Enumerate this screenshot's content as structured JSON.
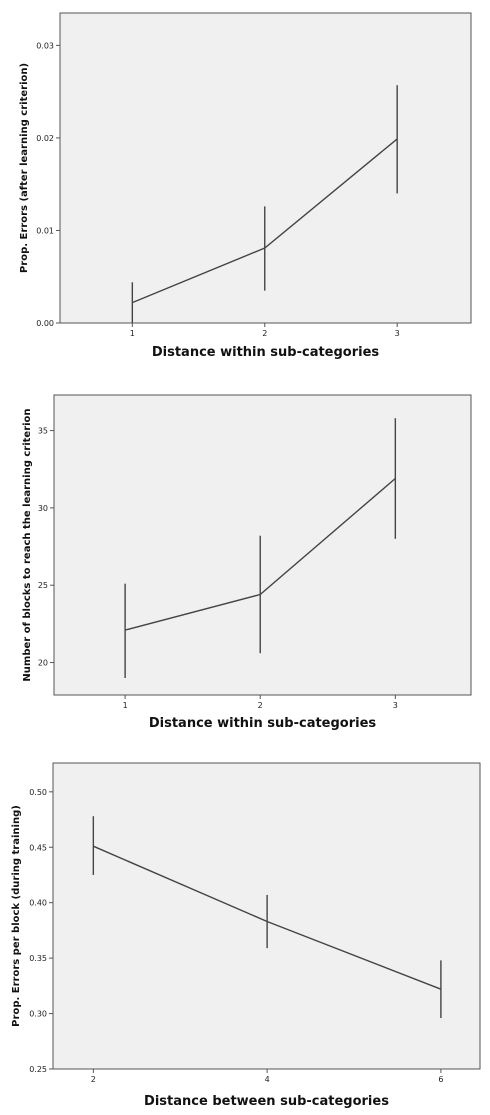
{
  "chart_data": [
    {
      "type": "line",
      "xlabel": "Distance within sub-categories",
      "ylabel": "Prop. Errors (after learning criterion)",
      "x": [
        1,
        2,
        3
      ],
      "x_ticks": [
        "1",
        "2",
        "3"
      ],
      "y_ticks": [
        "0.00",
        "0.01",
        "0.02",
        "0.03"
      ],
      "ylim": [
        0.0,
        0.0335
      ],
      "values": [
        0.0022,
        0.0081,
        0.0199
      ],
      "error_low": [
        0.0,
        0.0035,
        0.014
      ],
      "error_high": [
        0.0044,
        0.0126,
        0.0257
      ],
      "grid": false
    },
    {
      "type": "line",
      "xlabel": "Distance within sub-categories",
      "ylabel": "Number of blocks to reach the learning criterion",
      "x": [
        1,
        2,
        3
      ],
      "x_ticks": [
        "1",
        "2",
        "3"
      ],
      "y_ticks": [
        "20",
        "25",
        "30",
        "35"
      ],
      "ylim": [
        17.9,
        37.3
      ],
      "values": [
        22.1,
        24.4,
        31.9
      ],
      "error_low": [
        19.0,
        20.6,
        28.0
      ],
      "error_high": [
        25.1,
        28.2,
        35.8
      ],
      "grid": false
    },
    {
      "type": "line",
      "xlabel": "Distance between sub-categories",
      "ylabel": "Prop. Errors per block (during training)",
      "x": [
        2,
        4,
        6
      ],
      "x_ticks": [
        "2",
        "4",
        "6"
      ],
      "y_ticks": [
        "0.25",
        "0.30",
        "0.35",
        "0.40",
        "0.45",
        "0.50"
      ],
      "ylim": [
        0.25,
        0.526
      ],
      "values": [
        0.451,
        0.383,
        0.322
      ],
      "error_low": [
        0.425,
        0.359,
        0.296
      ],
      "error_high": [
        0.478,
        0.407,
        0.348
      ],
      "grid": false
    }
  ]
}
